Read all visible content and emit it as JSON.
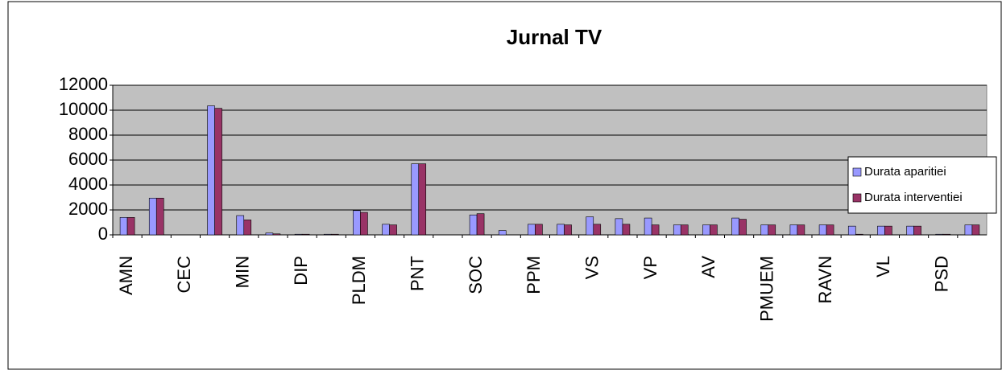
{
  "chart_data": {
    "type": "bar",
    "title": "Jurnal TV",
    "categories": [
      "AMN",
      null,
      "CEC",
      null,
      "MIN",
      null,
      "DIP",
      null,
      "PLDM",
      null,
      "PNT",
      null,
      "SOC",
      null,
      "PPM",
      null,
      "VS",
      null,
      "VP",
      null,
      "AV",
      null,
      "PMUEM",
      null,
      "RAVN",
      null,
      "VL",
      null,
      "PSD",
      null
    ],
    "series": [
      {
        "name": "Durata aparitiei",
        "color": "#9999ff",
        "values": [
          1400,
          2950,
          0,
          10350,
          1550,
          150,
          50,
          50,
          1950,
          850,
          5700,
          0,
          1600,
          350,
          850,
          850,
          1450,
          1300,
          1350,
          800,
          800,
          1350,
          800,
          800,
          800,
          700,
          700,
          700,
          50,
          800
        ]
      },
      {
        "name": "Durata interventiei",
        "color": "#993366",
        "values": [
          1400,
          2950,
          0,
          10150,
          1200,
          80,
          50,
          50,
          1800,
          800,
          5700,
          0,
          1700,
          0,
          850,
          800,
          850,
          850,
          800,
          800,
          800,
          1250,
          800,
          800,
          800,
          50,
          700,
          700,
          50,
          800
        ]
      }
    ],
    "ylim": [
      0,
      12000
    ],
    "yticks": [
      0,
      2000,
      4000,
      6000,
      8000,
      10000,
      12000
    ],
    "grid": true,
    "legend": "right"
  }
}
